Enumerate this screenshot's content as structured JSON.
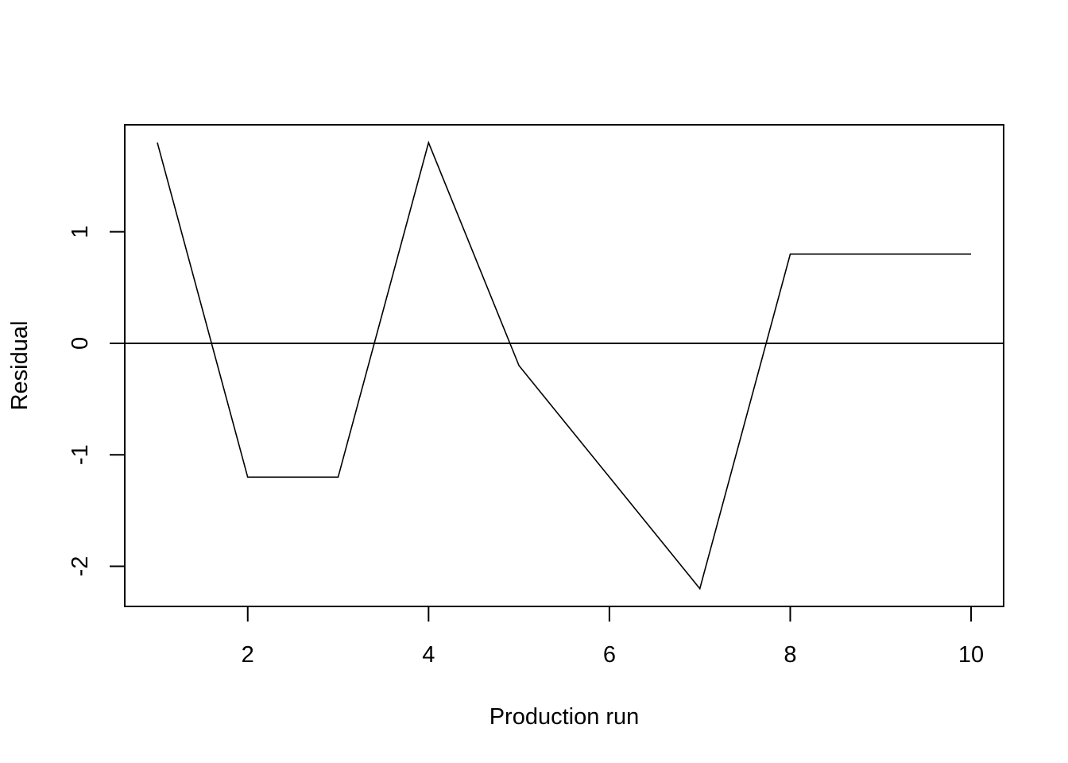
{
  "chart_data": {
    "type": "line",
    "title": "",
    "xlabel": "Production run",
    "ylabel": "Residual",
    "x": [
      1,
      2,
      3,
      4,
      5,
      6,
      7,
      8,
      9,
      10
    ],
    "series": [
      {
        "values": [
          1.8,
          -1.2,
          -1.2,
          1.8,
          -0.2,
          -1.2,
          -2.2,
          0.8,
          0.8,
          0.8
        ]
      }
    ],
    "reference_line": {
      "y": 0
    },
    "xlim": [
      0.64,
      10.36
    ],
    "ylim": [
      -2.36,
      1.96
    ],
    "xticks": [
      2,
      4,
      6,
      8,
      10
    ],
    "yticks": [
      -2,
      -1,
      0,
      1
    ],
    "grid": false,
    "line_color": "#000000"
  }
}
